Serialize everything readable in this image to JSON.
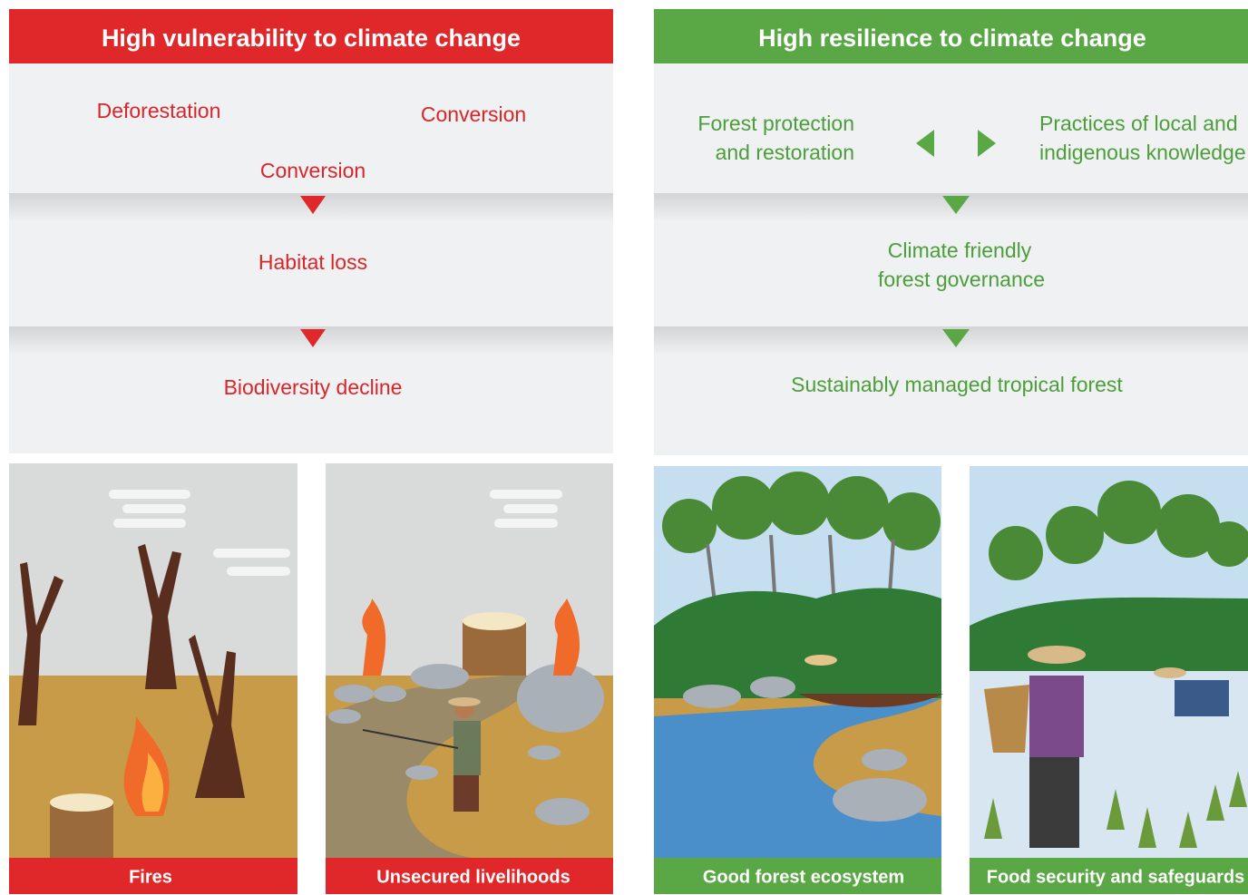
{
  "left": {
    "title": "High vulnerability to climate change",
    "causes": [
      "Deforestation",
      "Conversion",
      "Conversion"
    ],
    "steps": [
      "Habitat loss",
      "Biodiversity decline"
    ],
    "captions": [
      "Fires",
      "Unsecured livelihoods"
    ]
  },
  "right": {
    "title": "High resilience to climate change",
    "causes": [
      [
        "Forest protection",
        "and restoration"
      ],
      [
        "Practices of local and",
        "indigenous knowledge"
      ]
    ],
    "steps": [
      [
        "Climate friendly",
        "forest governance"
      ],
      [
        "Sustainably managed tropical forest"
      ]
    ],
    "captions": [
      "Good forest ecosystem",
      "Food security and safeguards"
    ]
  }
}
